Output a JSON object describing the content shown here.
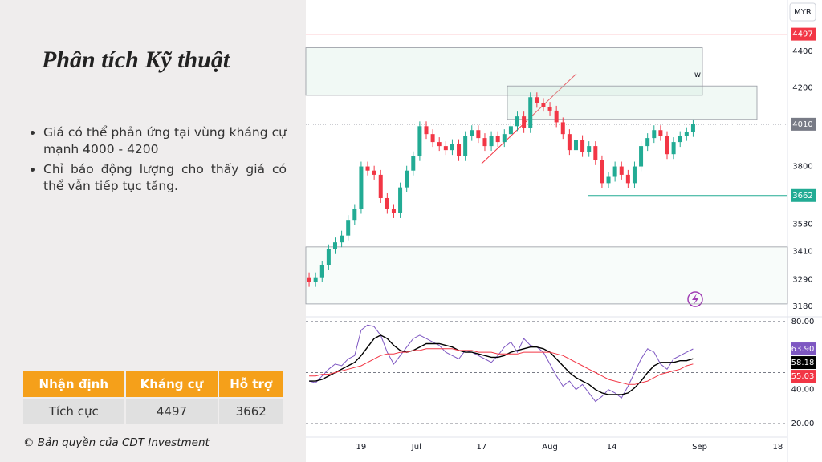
{
  "slide": {
    "title": "Phân tích Kỹ thuật",
    "bullets": [
      "Giá có thể phản ứng tại vùng kháng cự mạnh 4000 - 4200",
      "Chỉ báo động lượng cho thấy giá có thể vẫn tiếp tục tăng."
    ],
    "table": {
      "header": [
        "Nhận định",
        "Kháng cự",
        "Hỗ trợ"
      ],
      "rows": [
        [
          "Tích cực",
          "4497",
          "3662"
        ]
      ]
    },
    "footer": "© Bản quyền của CDT Investment"
  },
  "chart_data": [
    {
      "type": "candlestick",
      "currency": "MYR",
      "open": [
        3300,
        3280,
        3300,
        3350,
        3420,
        3450,
        3480,
        3550,
        3600,
        3800,
        3780,
        3760,
        3650,
        3600,
        3580,
        3700,
        3780,
        3850,
        4000,
        3960,
        3920,
        3900,
        3880,
        3910,
        3850,
        3950,
        3980,
        3940,
        3900,
        3950,
        3920,
        3960,
        4000,
        4050,
        3990,
        4150,
        4120,
        4100,
        4080,
        4020,
        3960,
        3880,
        3930,
        3870,
        3900,
        3830,
        3720,
        3750,
        3800,
        3760,
        3720,
        3800,
        3900,
        3940,
        3980,
        3950,
        3860,
        3920,
        3950,
        3970
      ],
      "close": [
        3280,
        3300,
        3350,
        3420,
        3450,
        3480,
        3550,
        3600,
        3800,
        3780,
        3760,
        3650,
        3600,
        3580,
        3700,
        3780,
        3850,
        4000,
        3960,
        3920,
        3900,
        3880,
        3910,
        3850,
        3950,
        3980,
        3940,
        3900,
        3950,
        3920,
        3960,
        4000,
        4050,
        3990,
        4150,
        4120,
        4100,
        4080,
        4020,
        3960,
        3880,
        3930,
        3870,
        3900,
        3830,
        3720,
        3750,
        3800,
        3760,
        3720,
        3800,
        3900,
        3940,
        3980,
        3950,
        3860,
        3920,
        3950,
        3970,
        4010
      ],
      "xlim": [
        -0.5,
        73.5
      ],
      "xticks": [
        {
          "value": 8,
          "label": "19"
        },
        {
          "value": 16.5,
          "label": "Jul"
        },
        {
          "value": 26.5,
          "label": "17"
        },
        {
          "value": 37,
          "label": "Aug"
        },
        {
          "value": 46.5,
          "label": "14"
        },
        {
          "value": 60,
          "label": "Sep"
        },
        {
          "value": 72,
          "label": "18"
        }
      ],
      "ylim": [
        3138,
        4697
      ],
      "log": true,
      "yticks": [
        4400,
        4200,
        3800,
        3530,
        3410,
        3290,
        3180
      ],
      "up_color": "#22ab94",
      "down_color": "#f23645",
      "levels": [
        {
          "value": 4497,
          "color": "#f23645"
        },
        {
          "value": 4010,
          "color": "#787b86"
        },
        {
          "value": 3662,
          "color": "#22ab94"
        }
      ],
      "zones": [
        {
          "from": 4160,
          "to": 4420
        },
        {
          "from": 4035,
          "to": 4210
        },
        {
          "from": 3190,
          "to": 3430
        }
      ],
      "annotation": "w"
    },
    {
      "type": "line",
      "series": [
        {
          "color": "#7e57c2",
          "values": [
            45,
            44,
            48,
            52,
            55,
            54,
            58,
            60,
            75,
            78,
            77,
            72,
            62,
            55,
            60,
            65,
            70,
            72,
            70,
            68,
            66,
            62,
            60,
            58,
            63,
            62,
            60,
            58,
            56,
            60,
            65,
            68,
            62,
            70,
            66,
            65,
            62,
            55,
            48,
            42,
            45,
            40,
            43,
            38,
            33,
            36,
            40,
            38,
            35,
            42,
            50,
            58,
            64,
            62,
            55,
            52,
            58,
            60,
            62,
            63.9
          ],
          "value_label": "63.90"
        },
        {
          "color": "#000000",
          "values": [
            45,
            45,
            46,
            48,
            50,
            52,
            54,
            56,
            60,
            65,
            70,
            72,
            70,
            66,
            63,
            62,
            63,
            65,
            67,
            67,
            67,
            66,
            65,
            63,
            62,
            62,
            61,
            60,
            59,
            59,
            60,
            62,
            63,
            64,
            65,
            65,
            64,
            62,
            58,
            54,
            50,
            47,
            45,
            43,
            40,
            38,
            37,
            37,
            37,
            38,
            41,
            45,
            50,
            54,
            56,
            56,
            56,
            57,
            57,
            58.18
          ]
        },
        {
          "color": "#f23645",
          "values": [
            48,
            48,
            49,
            49,
            50,
            51,
            52,
            53,
            54,
            56,
            58,
            60,
            61,
            61,
            62,
            62,
            63,
            63,
            64,
            64,
            64,
            64,
            64,
            63,
            63,
            63,
            62,
            62,
            62,
            61,
            61,
            61,
            61,
            62,
            62,
            62,
            62,
            62,
            61,
            60,
            58,
            56,
            54,
            52,
            50,
            48,
            46,
            45,
            44,
            43,
            43,
            44,
            45,
            47,
            49,
            50,
            51,
            52,
            54,
            55.03
          ]
        }
      ],
      "ylim": [
        12,
        82.8
      ],
      "yticks": [
        {
          "value": 80,
          "label": "80.00"
        },
        {
          "value": 40,
          "label": "40.00"
        },
        {
          "value": 20,
          "label": "20.00"
        }
      ],
      "bands": [
        80,
        50,
        20
      ]
    }
  ]
}
